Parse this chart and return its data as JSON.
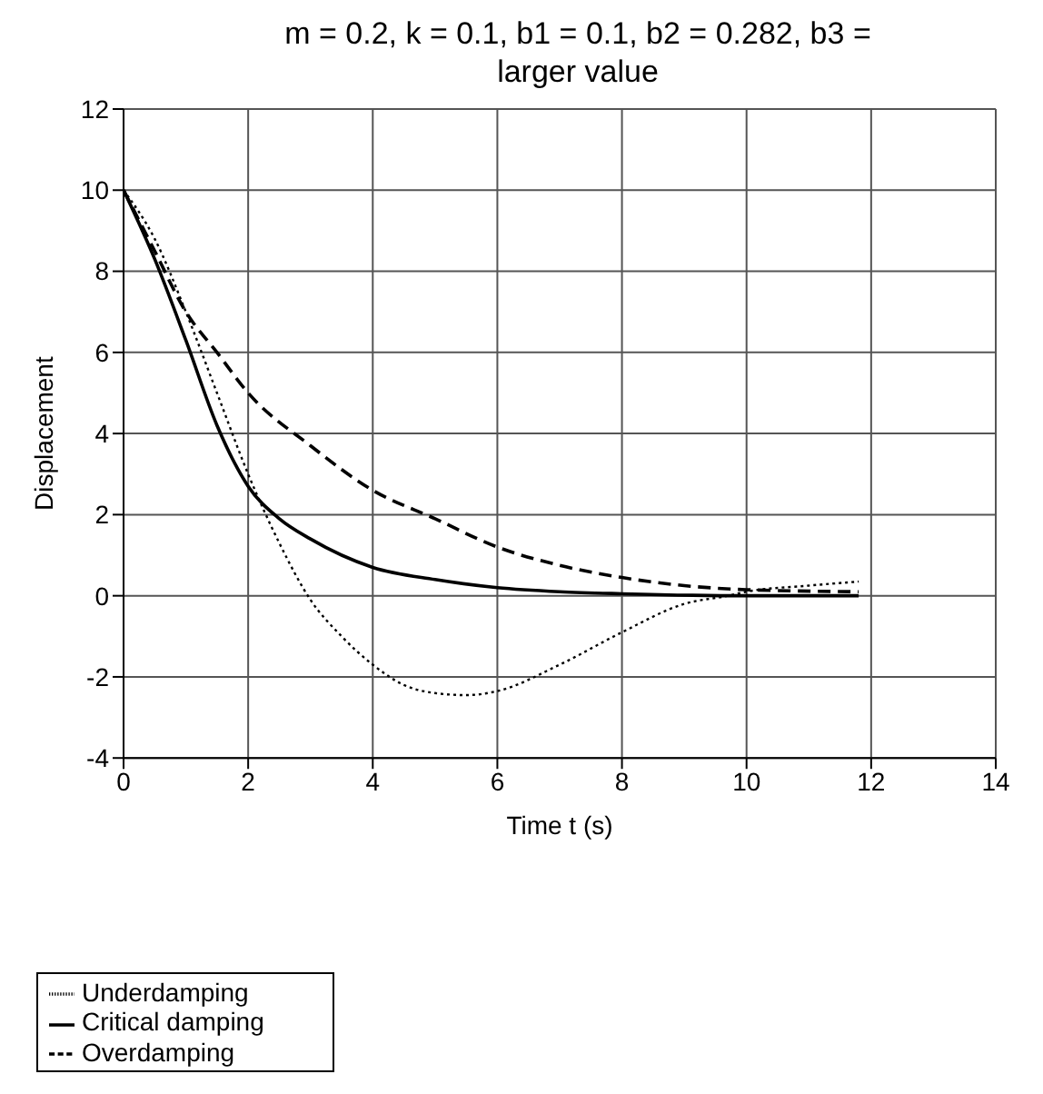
{
  "chart_data": {
    "type": "line",
    "title": "m = 0.2, k = 0.1, b1 = 0.1, b2 = 0.282, b3 = larger value",
    "xlabel": "Time t (s)",
    "ylabel": "Displacement",
    "xlim": [
      0,
      14
    ],
    "xticks": [
      0,
      2,
      4,
      6,
      8,
      10,
      12,
      14
    ],
    "ylim": [
      -4,
      12
    ],
    "yticks": [
      -4,
      -2,
      0,
      2,
      4,
      6,
      8,
      10,
      12
    ],
    "grid": true,
    "legend": "bottom left",
    "marker": "none",
    "series": [
      {
        "name": "Underdamping",
        "color": "#000000",
        "line_style": "dotted",
        "x": [
          0,
          0.5,
          1,
          1.5,
          2,
          2.5,
          3,
          3.5,
          4,
          4.5,
          5,
          5.5,
          6,
          7,
          8,
          9,
          9.7,
          10,
          11,
          11.8
        ],
        "values": [
          10,
          8.8,
          7.0,
          5.0,
          3.0,
          1.3,
          -0.1,
          -1.0,
          -1.7,
          -2.2,
          -2.4,
          -2.45,
          -2.35,
          -1.7,
          -0.9,
          -0.2,
          0,
          0.1,
          0.25,
          0.35
        ]
      },
      {
        "name": "Critical damping",
        "color": "#000000",
        "line_style": "solid",
        "x": [
          0,
          0.5,
          1,
          1.5,
          2,
          2.5,
          3,
          4,
          5,
          6,
          7,
          8,
          10,
          11.8
        ],
        "values": [
          10,
          8.3,
          6.3,
          4.2,
          2.7,
          1.9,
          1.4,
          0.7,
          0.4,
          0.2,
          0.1,
          0.05,
          0,
          0
        ]
      },
      {
        "name": "Overdamping",
        "color": "#000000",
        "line_style": "dashed",
        "x": [
          0,
          0.5,
          1,
          1.5,
          2,
          3,
          4,
          5,
          6,
          7,
          8,
          9,
          10,
          11.8
        ],
        "values": [
          10,
          8.5,
          7.0,
          6.0,
          5.0,
          3.7,
          2.6,
          1.9,
          1.2,
          0.75,
          0.45,
          0.25,
          0.15,
          0.1
        ]
      }
    ]
  }
}
